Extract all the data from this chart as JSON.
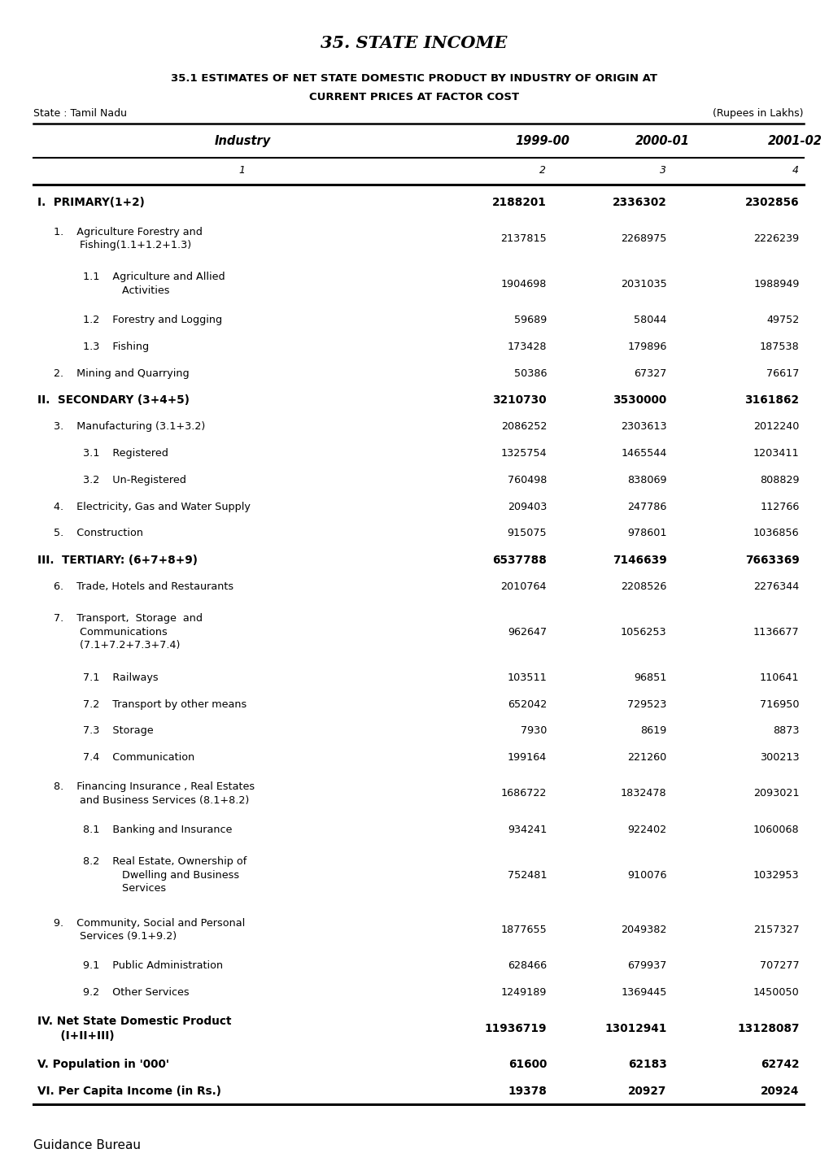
{
  "main_title": "35. STATE INCOME",
  "sub_title_line1": "35.1 ESTIMATES OF NET STATE DOMESTIC PRODUCT BY INDUSTRY OF ORIGIN AT",
  "sub_title_line2": "CURRENT PRICES AT FACTOR COST",
  "state_label": "State : Tamil Nadu",
  "unit_label": "(Rupees in Lakhs)",
  "col_headers": [
    "Industry",
    "1999-00",
    "2000-01",
    "2001-02"
  ],
  "col_numbers": [
    "1",
    "2",
    "3",
    "4"
  ],
  "footer": "Guidance Bureau",
  "rows": [
    {
      "indent": 0,
      "bold": true,
      "label": "I.  PRIMARY(1+2)",
      "v1": "2188201",
      "v2": "2336302",
      "v3": "2302856"
    },
    {
      "indent": 1,
      "bold": false,
      "label": "1.    Agriculture Forestry and\n        Fishing(1.1+1.2+1.3)",
      "v1": "2137815",
      "v2": "2268975",
      "v3": "2226239"
    },
    {
      "indent": 2,
      "bold": false,
      "label": "1.1    Agriculture and Allied\n            Activities",
      "v1": "1904698",
      "v2": "2031035",
      "v3": "1988949"
    },
    {
      "indent": 2,
      "bold": false,
      "label": "1.2    Forestry and Logging",
      "v1": "59689",
      "v2": "58044",
      "v3": "49752"
    },
    {
      "indent": 2,
      "bold": false,
      "label": "1.3    Fishing",
      "v1": "173428",
      "v2": "179896",
      "v3": "187538"
    },
    {
      "indent": 1,
      "bold": false,
      "label": "2.    Mining and Quarrying",
      "v1": "50386",
      "v2": "67327",
      "v3": "76617"
    },
    {
      "indent": 0,
      "bold": true,
      "label": "II.  SECONDARY (3+4+5)",
      "v1": "3210730",
      "v2": "3530000",
      "v3": "3161862"
    },
    {
      "indent": 1,
      "bold": false,
      "label": "3.    Manufacturing (3.1+3.2)",
      "v1": "2086252",
      "v2": "2303613",
      "v3": "2012240"
    },
    {
      "indent": 2,
      "bold": false,
      "label": "3.1    Registered",
      "v1": "1325754",
      "v2": "1465544",
      "v3": "1203411"
    },
    {
      "indent": 2,
      "bold": false,
      "label": "3.2    Un-Registered",
      "v1": "760498",
      "v2": "838069",
      "v3": "808829"
    },
    {
      "indent": 1,
      "bold": false,
      "label": "4.    Electricity, Gas and Water Supply",
      "v1": "209403",
      "v2": "247786",
      "v3": "112766"
    },
    {
      "indent": 1,
      "bold": false,
      "label": "5.    Construction",
      "v1": "915075",
      "v2": "978601",
      "v3": "1036856"
    },
    {
      "indent": 0,
      "bold": true,
      "label": "III.  TERTIARY: (6+7+8+9)",
      "v1": "6537788",
      "v2": "7146639",
      "v3": "7663369"
    },
    {
      "indent": 1,
      "bold": false,
      "label": "6.    Trade, Hotels and Restaurants",
      "v1": "2010764",
      "v2": "2208526",
      "v3": "2276344"
    },
    {
      "indent": 1,
      "bold": false,
      "label": "7.    Transport,  Storage  and\n        Communications\n        (7.1+7.2+7.3+7.4)",
      "v1": "962647",
      "v2": "1056253",
      "v3": "1136677"
    },
    {
      "indent": 2,
      "bold": false,
      "label": "7.1    Railways",
      "v1": "103511",
      "v2": "96851",
      "v3": "110641"
    },
    {
      "indent": 2,
      "bold": false,
      "label": "7.2    Transport by other means",
      "v1": "652042",
      "v2": "729523",
      "v3": "716950"
    },
    {
      "indent": 2,
      "bold": false,
      "label": "7.3    Storage",
      "v1": "7930",
      "v2": "8619",
      "v3": "8873"
    },
    {
      "indent": 2,
      "bold": false,
      "label": "7.4    Communication",
      "v1": "199164",
      "v2": "221260",
      "v3": "300213"
    },
    {
      "indent": 1,
      "bold": false,
      "label": "8.    Financing Insurance , Real Estates\n        and Business Services (8.1+8.2)",
      "v1": "1686722",
      "v2": "1832478",
      "v3": "2093021"
    },
    {
      "indent": 2,
      "bold": false,
      "label": "8.1    Banking and Insurance",
      "v1": "934241",
      "v2": "922402",
      "v3": "1060068"
    },
    {
      "indent": 2,
      "bold": false,
      "label": "8.2    Real Estate, Ownership of\n            Dwelling and Business\n            Services",
      "v1": "752481",
      "v2": "910076",
      "v3": "1032953"
    },
    {
      "indent": 1,
      "bold": false,
      "label": "9.    Community, Social and Personal\n        Services (9.1+9.2)",
      "v1": "1877655",
      "v2": "2049382",
      "v3": "2157327"
    },
    {
      "indent": 2,
      "bold": false,
      "label": "9.1    Public Administration",
      "v1": "628466",
      "v2": "679937",
      "v3": "707277"
    },
    {
      "indent": 2,
      "bold": false,
      "label": "9.2    Other Services",
      "v1": "1249189",
      "v2": "1369445",
      "v3": "1450050"
    },
    {
      "indent": 0,
      "bold": true,
      "label": "IV. Net State Domestic Product\n      (I+II+III)",
      "v1": "11936719",
      "v2": "13012941",
      "v3": "13128087"
    },
    {
      "indent": 0,
      "bold": true,
      "label": "V. Population in '000'",
      "v1": "61600",
      "v2": "62183",
      "v3": "62742"
    },
    {
      "indent": 0,
      "bold": true,
      "label": "VI. Per Capita Income (in Rs.)",
      "v1": "19378",
      "v2": "20927",
      "v3": "20924"
    }
  ]
}
